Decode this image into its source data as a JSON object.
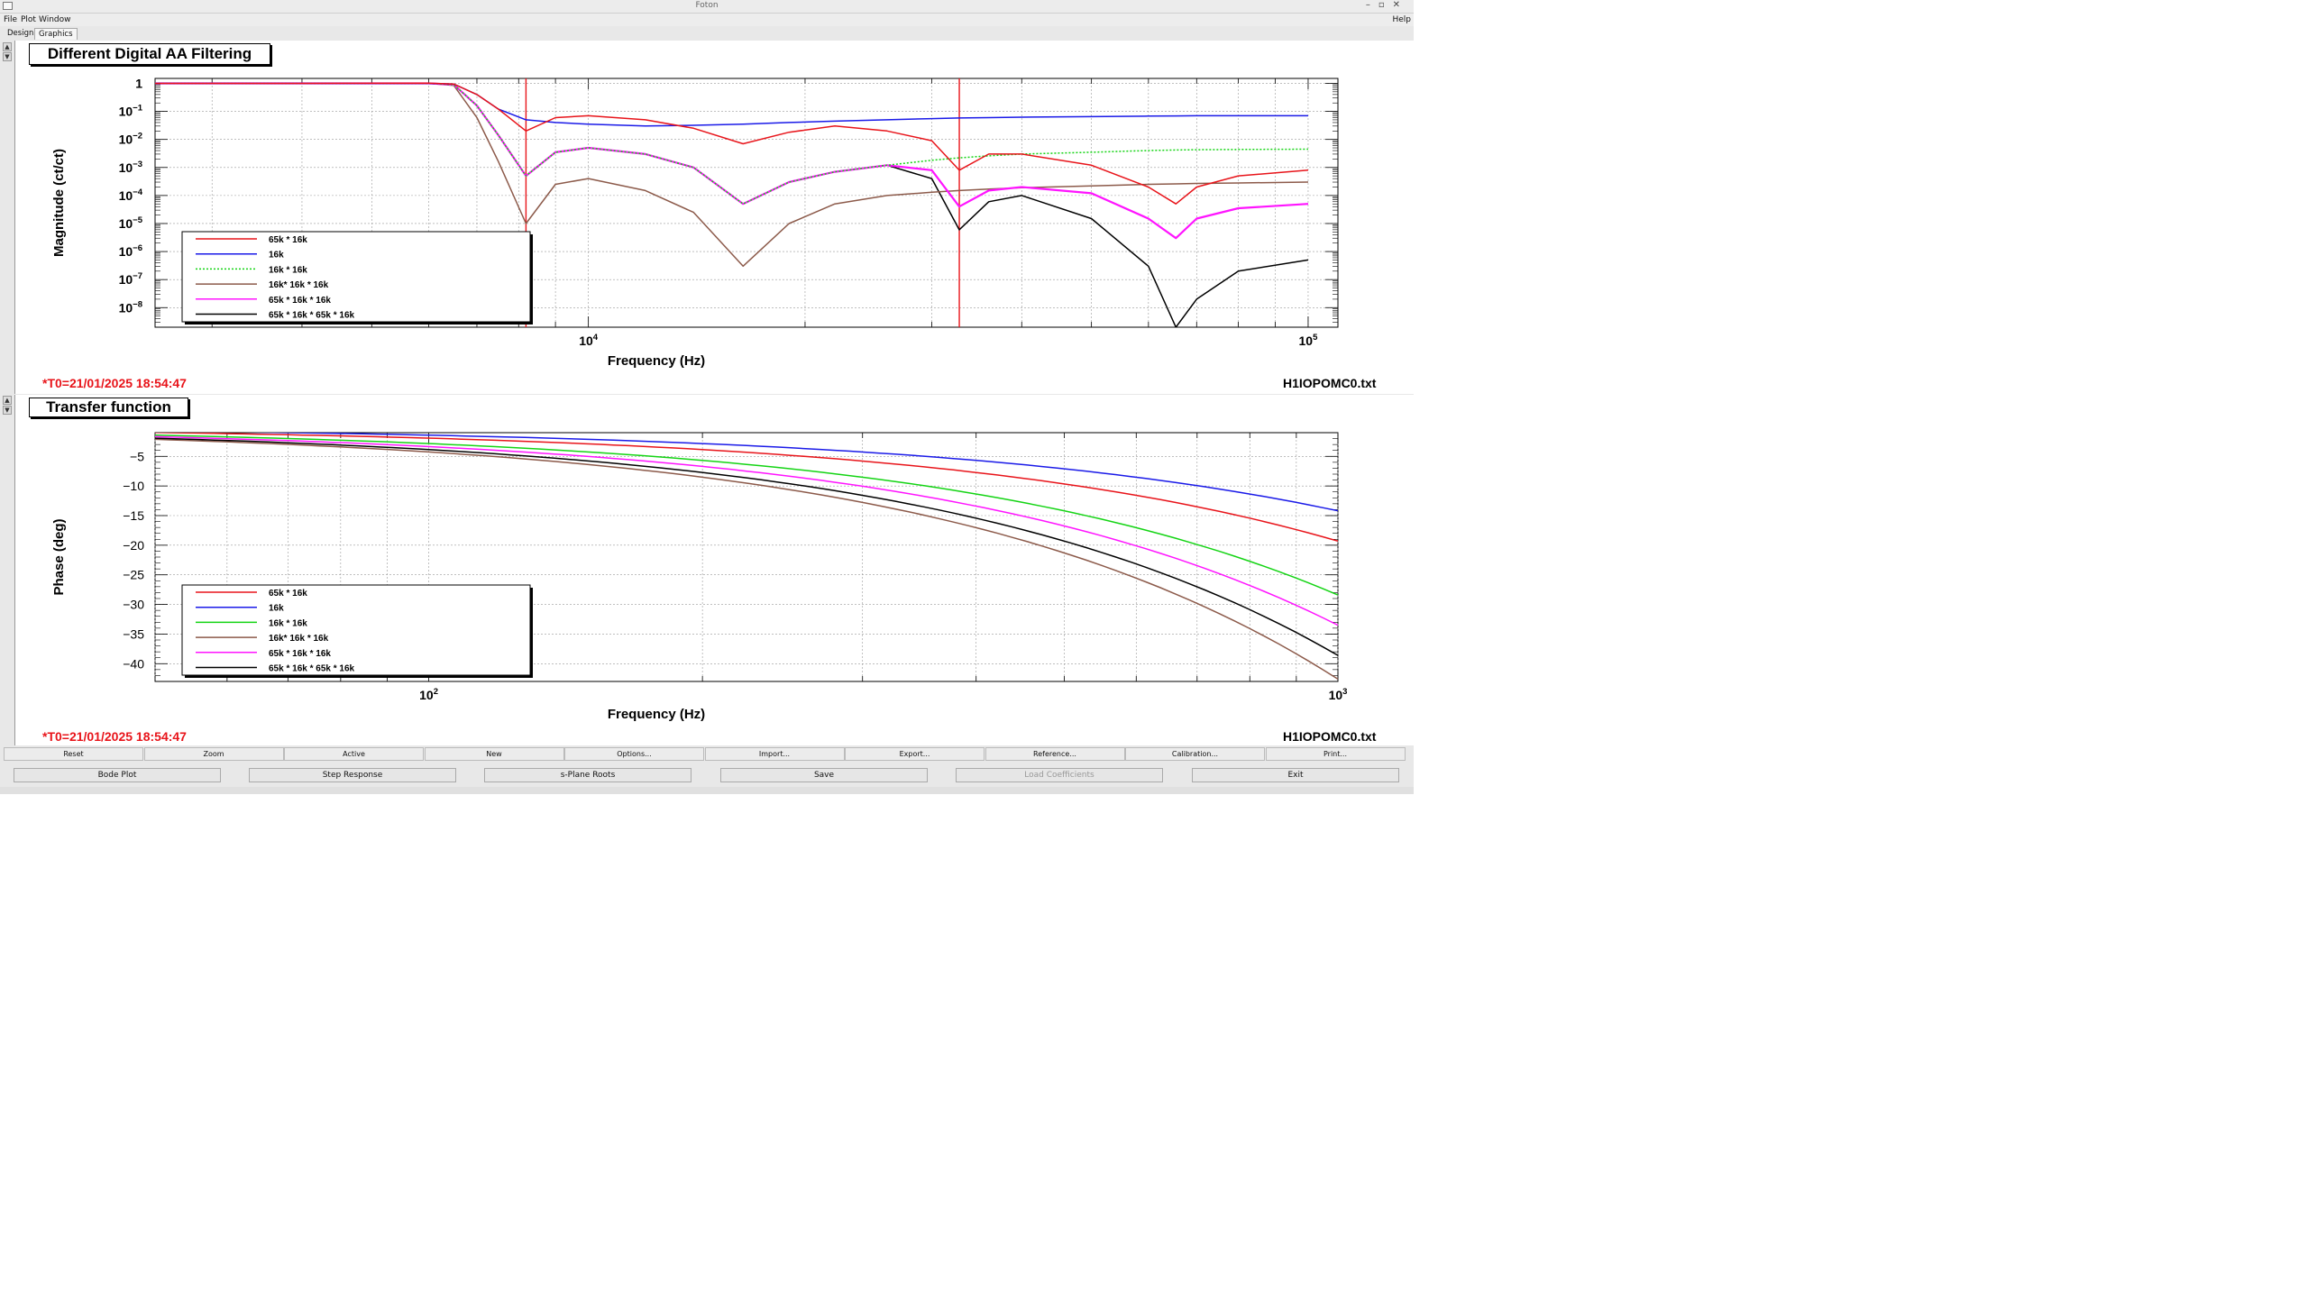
{
  "window": {
    "title": "Foton",
    "help": "Help"
  },
  "menu": [
    "File",
    "Plot",
    "Window"
  ],
  "tabs": [
    "Design",
    "Graphics"
  ],
  "colors": {
    "red": "#e8141a",
    "blue": "#1a1ae8",
    "green": "#14d414",
    "brown": "#8c5a4a",
    "magenta": "#ff14ff",
    "black": "#000000"
  },
  "top_panel": {
    "title": "Different Digital AA Filtering",
    "timestamp": "*T0=21/01/2025 18:54:47",
    "filename": "H1IOPOMC0.txt"
  },
  "bottom_panel": {
    "title": "Transfer function",
    "timestamp": "*T0=21/01/2025 18:54:47",
    "filename": "H1IOPOMC0.txt"
  },
  "chart_data": [
    {
      "type": "line",
      "title": "",
      "xlabel": "Frequency (Hz)",
      "ylabel": "Magnitude (ct/ct)",
      "xscale": "log",
      "yscale": "log",
      "xlim": [
        2500,
        110000
      ],
      "ylim": [
        2e-09,
        1.5
      ],
      "x_ticklabels": [
        "10^4",
        "10^5"
      ],
      "y_ticklabels": [
        "1",
        "10^-1",
        "10^-2",
        "10^-3",
        "10^-4",
        "10^-5",
        "10^-6",
        "10^-7",
        "10^-8"
      ],
      "grid": true,
      "vertical_markers_hz": [
        8190,
        32760
      ],
      "legend_position": "bottom-left",
      "x": [
        2500,
        4000,
        6000,
        6500,
        7000,
        7500,
        8190,
        9000,
        10000,
        12000,
        14000,
        16400,
        19000,
        22000,
        26000,
        30000,
        32760,
        36000,
        40000,
        50000,
        60000,
        65500,
        70000,
        80000,
        100000
      ],
      "series": [
        {
          "name": "65k * 16k",
          "color": "red",
          "style": "solid",
          "values": [
            1.0,
            1.0,
            1.02,
            0.95,
            0.4,
            0.12,
            0.02,
            0.06,
            0.07,
            0.05,
            0.025,
            0.007,
            0.018,
            0.03,
            0.02,
            0.009,
            0.0008,
            0.003,
            0.003,
            0.0012,
            0.0002,
            5e-05,
            0.0002,
            0.0005,
            0.0008
          ]
        },
        {
          "name": "16k",
          "color": "blue",
          "style": "solid",
          "values": [
            1.0,
            1.0,
            1.0,
            0.95,
            0.4,
            0.12,
            0.05,
            0.04,
            0.035,
            0.03,
            0.032,
            0.035,
            0.04,
            0.045,
            0.05,
            0.055,
            0.058,
            0.06,
            0.062,
            0.065,
            0.068,
            0.069,
            0.07,
            0.07,
            0.07
          ]
        },
        {
          "name": "16k * 16k",
          "color": "green",
          "style": "dotted",
          "values": [
            1.0,
            1.0,
            1.0,
            0.9,
            0.16,
            0.014,
            0.0005,
            0.0035,
            0.005,
            0.003,
            0.001,
            5e-05,
            0.0003,
            0.0007,
            0.0012,
            0.0018,
            0.0022,
            0.0026,
            0.003,
            0.0035,
            0.004,
            0.0042,
            0.0043,
            0.0044,
            0.0045
          ]
        },
        {
          "name": "16k* 16k * 16k",
          "color": "brown",
          "style": "solid",
          "values": [
            1.0,
            1.0,
            1.0,
            0.85,
            0.06,
            0.0016,
            1e-05,
            0.00025,
            0.0004,
            0.00015,
            2.5e-05,
            3e-07,
            1e-05,
            5e-05,
            0.0001,
            0.00013,
            0.00015,
            0.00017,
            0.00019,
            0.00022,
            0.00025,
            0.00026,
            0.00027,
            0.00028,
            0.0003
          ]
        },
        {
          "name": "65k * 16k * 16k",
          "color": "magenta",
          "style": "solid",
          "values": [
            1.0,
            1.0,
            1.0,
            0.9,
            0.16,
            0.014,
            0.0005,
            0.0035,
            0.005,
            0.003,
            0.001,
            5e-05,
            0.0003,
            0.0007,
            0.0012,
            0.0008,
            4e-05,
            0.00015,
            0.0002,
            0.00012,
            1.5e-05,
            3e-06,
            1.5e-05,
            3.5e-05,
            5e-05
          ]
        },
        {
          "name": "65k * 16k * 65k * 16k",
          "color": "black",
          "style": "solid",
          "values": [
            1.0,
            1.0,
            1.0,
            0.9,
            0.16,
            0.014,
            0.0005,
            0.0035,
            0.005,
            0.003,
            0.001,
            5e-05,
            0.0003,
            0.0007,
            0.0012,
            0.0004,
            6e-06,
            6e-05,
            0.0001,
            1.5e-05,
            3e-07,
            2e-09,
            2e-08,
            2e-07,
            5e-07
          ]
        }
      ]
    },
    {
      "type": "line",
      "title": "",
      "xlabel": "Frequency (Hz)",
      "ylabel": "Phase (deg)",
      "xscale": "log",
      "yscale": "linear",
      "xlim": [
        50,
        1000
      ],
      "ylim": [
        -43,
        -1
      ],
      "y_ticks": [
        -5,
        -10,
        -15,
        -20,
        -25,
        -30,
        -35,
        -40
      ],
      "y_ticklabels": [
        "−5",
        "−10",
        "−15",
        "−20",
        "−25",
        "−30",
        "−35",
        "−40"
      ],
      "x_ticklabels": [
        "10^2",
        "10^3"
      ],
      "grid": true,
      "legend_position": "bottom-left",
      "series": [
        {
          "name": "65k * 16k",
          "color": "red",
          "style": "solid",
          "phase_slope_deg_per_hz": -0.0193
        },
        {
          "name": "16k",
          "color": "blue",
          "style": "solid",
          "phase_slope_deg_per_hz": -0.0142
        },
        {
          "name": "16k * 16k",
          "color": "green",
          "style": "solid",
          "phase_slope_deg_per_hz": -0.0284
        },
        {
          "name": "16k* 16k * 16k",
          "color": "brown",
          "style": "solid",
          "phase_slope_deg_per_hz": -0.0426
        },
        {
          "name": "65k * 16k * 16k",
          "color": "magenta",
          "style": "solid",
          "phase_slope_deg_per_hz": -0.0335
        },
        {
          "name": "65k * 16k * 65k * 16k",
          "color": "black",
          "style": "solid",
          "phase_slope_deg_per_hz": -0.0386
        }
      ]
    }
  ],
  "buttons_row1": [
    "Reset",
    "Zoom",
    "Active",
    "New",
    "Options...",
    "Import...",
    "Export...",
    "Reference...",
    "Calibration...",
    "Print..."
  ],
  "buttons_row2": [
    {
      "label": "Bode Plot",
      "enabled": true
    },
    {
      "label": "Step Response",
      "enabled": true
    },
    {
      "label": "s-Plane Roots",
      "enabled": true
    },
    {
      "label": "Save",
      "enabled": true
    },
    {
      "label": "Load Coefficients",
      "enabled": false
    },
    {
      "label": "Exit",
      "enabled": true
    }
  ]
}
